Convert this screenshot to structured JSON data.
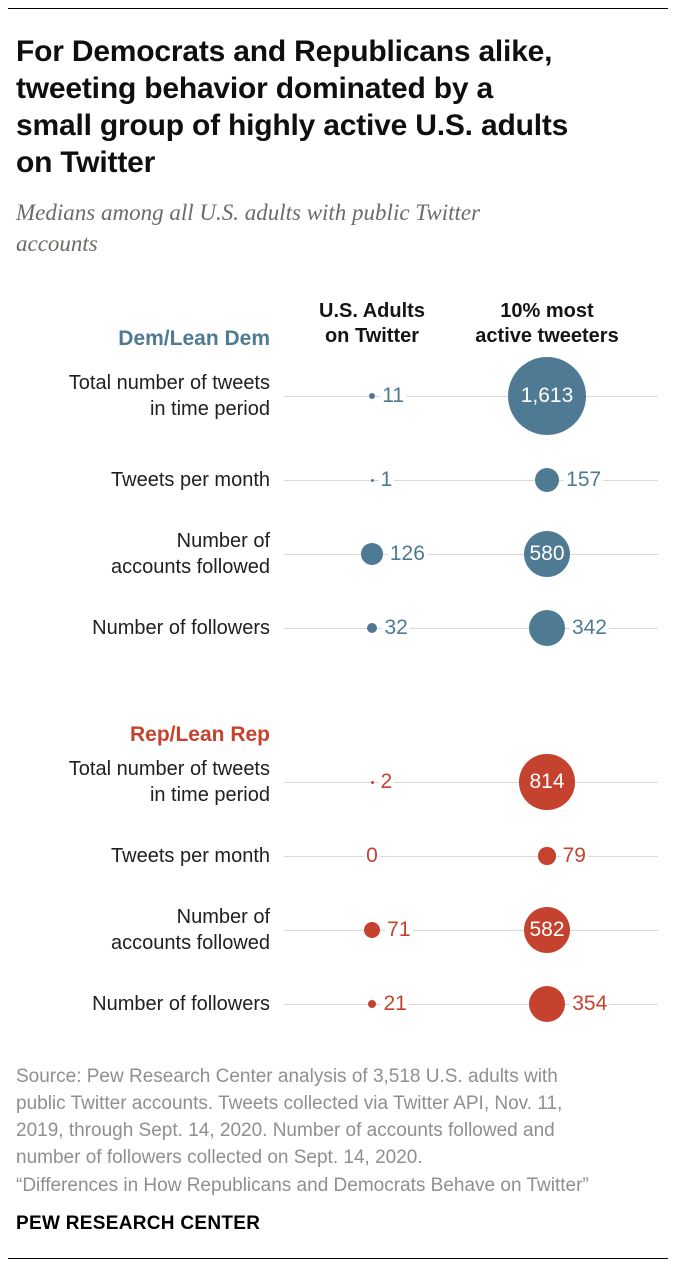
{
  "header": {
    "title": "For Democrats and Republicans alike, tweeting behavior dominated by a small group of highly active U.S. adults on Twitter",
    "title_lines": [
      "For Democrats and Republicans alike,",
      "tweeting behavior dominated by a",
      "small group of highly active U.S. adults",
      "on Twitter"
    ],
    "subtitle": "Medians among all U.S. adults with public Twitter accounts",
    "subtitle_lines": [
      "Medians among all U.S. adults with public Twitter",
      "accounts"
    ]
  },
  "chart_data": {
    "type": "scatter",
    "variant": "bubble dot plot, bubble area proportional to value",
    "columns": [
      {
        "label": "U.S. Adults on Twitter",
        "lines": [
          "U.S. Adults",
          "on Twitter"
        ]
      },
      {
        "label": "10% most active tweeters",
        "lines": [
          "10% most",
          "active tweeters"
        ]
      }
    ],
    "colors": {
      "dem": "#4e7a93",
      "rep": "#c5432e",
      "gridline": "#d9d9d9"
    },
    "groups": [
      {
        "name": "Dem/Lean Dem",
        "color_key": "dem",
        "rows": [
          {
            "label": "Total number of tweets in time period",
            "lines": [
              "Total number of tweets",
              "in time period"
            ],
            "values": [
              {
                "value": 11,
                "display": "11",
                "label_inside": false
              },
              {
                "value": 1613,
                "display": "1,613",
                "label_inside": true
              }
            ]
          },
          {
            "label": "Tweets per month",
            "lines": [
              "Tweets per month"
            ],
            "values": [
              {
                "value": 1,
                "display": "1",
                "label_inside": false
              },
              {
                "value": 157,
                "display": "157",
                "label_inside": false
              }
            ]
          },
          {
            "label": "Number of accounts followed",
            "lines": [
              "Number of",
              "accounts followed"
            ],
            "values": [
              {
                "value": 126,
                "display": "126",
                "label_inside": false
              },
              {
                "value": 580,
                "display": "580",
                "label_inside": true
              }
            ]
          },
          {
            "label": "Number of followers",
            "lines": [
              "Number of followers"
            ],
            "values": [
              {
                "value": 32,
                "display": "32",
                "label_inside": false
              },
              {
                "value": 342,
                "display": "342",
                "label_inside": false
              }
            ]
          }
        ]
      },
      {
        "name": "Rep/Lean Rep",
        "color_key": "rep",
        "rows": [
          {
            "label": "Total number of tweets in time period",
            "lines": [
              "Total number of tweets",
              "in time period"
            ],
            "values": [
              {
                "value": 2,
                "display": "2",
                "label_inside": false
              },
              {
                "value": 814,
                "display": "814",
                "label_inside": true
              }
            ]
          },
          {
            "label": "Tweets per month",
            "lines": [
              "Tweets per month"
            ],
            "values": [
              {
                "value": 0,
                "display": "0",
                "label_inside": false
              },
              {
                "value": 79,
                "display": "79",
                "label_inside": false
              }
            ]
          },
          {
            "label": "Number of accounts followed",
            "lines": [
              "Number of",
              "accounts followed"
            ],
            "values": [
              {
                "value": 71,
                "display": "71",
                "label_inside": false
              },
              {
                "value": 582,
                "display": "582",
                "label_inside": true
              }
            ]
          },
          {
            "label": "Number of followers",
            "lines": [
              "Number of followers"
            ],
            "values": [
              {
                "value": 21,
                "display": "21",
                "label_inside": false
              },
              {
                "value": 354,
                "display": "354",
                "label_inside": false
              }
            ]
          }
        ]
      }
    ]
  },
  "footer": {
    "source": "Source: Pew Research Center analysis of 3,518 U.S. adults with public Twitter accounts. Tweets collected via Twitter API, Nov. 11, 2019, through Sept. 14, 2020. Number of accounts followed and number of followers collected on Sept. 14, 2020.",
    "source_lines": [
      "Source: Pew Research Center analysis of 3,518 U.S. adults with",
      "public Twitter accounts. Tweets collected via Twitter API, Nov. 11,",
      "2019, through Sept. 14, 2020. Number of accounts followed and",
      "number of followers collected on Sept. 14, 2020."
    ],
    "citation": "“Differences in How Republicans and Democrats Behave on Twitter”",
    "brand": "PEW RESEARCH CENTER"
  }
}
